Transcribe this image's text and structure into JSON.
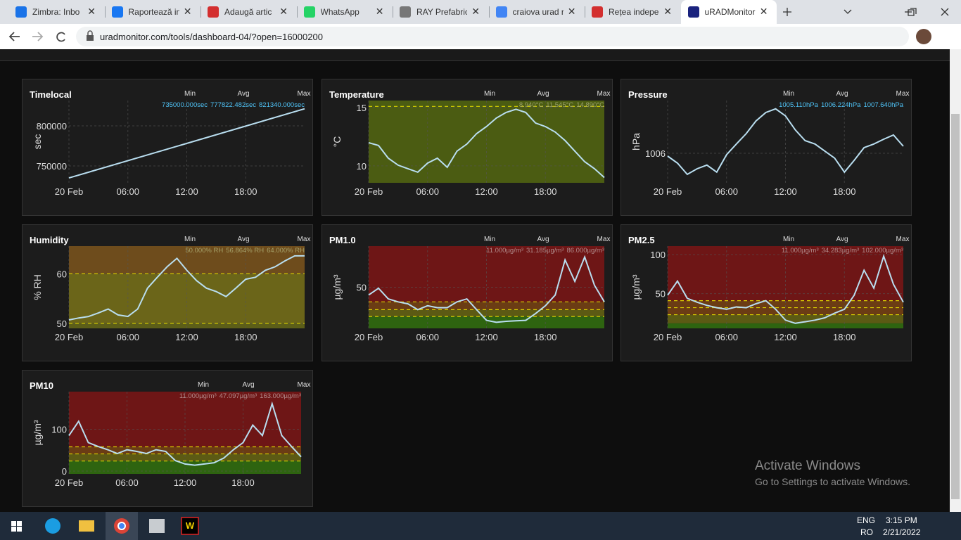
{
  "browser": {
    "tabs": [
      "Zimbra: Inbo",
      "Raportează in",
      "Adaugă artic",
      "WhatsApp",
      "RAY Prefabric",
      "craiova urad r",
      "Rețea indeper",
      "uRADMonitor"
    ],
    "active_tab": 7,
    "url": "uradmonitor.com/tools/dashboard-04/?open=16000200"
  },
  "watermark": {
    "title": "Activate Windows",
    "subtitle": "Go to Settings to activate Windows."
  },
  "taskbar": {
    "lang": "ENG",
    "layout": "RO",
    "time": "3:15 PM",
    "date": "2/21/2022"
  },
  "chart_data": [
    {
      "type": "line",
      "title": "Timelocal",
      "ylabel": "sec",
      "stat_labels": [
        "Min",
        "Avg",
        "Max"
      ],
      "stats": [
        "735000.000sec",
        "777822.482sec",
        "821340.000sec"
      ],
      "stats_color": "#4fc3f7",
      "x": [
        0,
        24
      ],
      "values": [
        735000,
        821340
      ],
      "color": "#b9def0",
      "xlim": [
        0,
        24
      ],
      "xticks": [
        {
          "value": 0,
          "label": "20 Feb"
        },
        {
          "value": 6,
          "label": "06:00"
        },
        {
          "value": 12,
          "label": "12:00"
        },
        {
          "value": 18,
          "label": "18:00"
        }
      ],
      "ylim": [
        728947,
        831579
      ],
      "yticks": [
        750000,
        800000
      ],
      "background": "#1c1c1c",
      "bands": [],
      "thresholds": []
    },
    {
      "type": "line",
      "title": "Temperature",
      "ylabel": "°C",
      "stat_labels": [
        "Min",
        "Avg",
        "Max"
      ],
      "stats": [
        "8.940°C",
        "11.545°C",
        "14.890°C"
      ],
      "stats_color": "#9aa06a",
      "x": [
        0,
        1,
        2,
        3,
        4,
        5,
        6,
        7,
        8,
        9,
        10,
        11,
        12,
        13,
        14,
        15,
        16,
        17,
        18,
        19,
        20,
        21,
        22,
        23,
        24
      ],
      "values": [
        11.99,
        11.75,
        10.66,
        10.06,
        9.76,
        9.46,
        10.24,
        10.66,
        9.88,
        11.27,
        11.87,
        12.77,
        13.37,
        14.1,
        14.58,
        14.85,
        14.58,
        13.67,
        13.37,
        12.9,
        12.17,
        11.27,
        10.36,
        9.76,
        9.0
      ],
      "color": "#b9def0",
      "xlim": [
        0,
        24
      ],
      "xticks": [
        {
          "value": 0,
          "label": "20 Feb"
        },
        {
          "value": 6,
          "label": "06:00"
        },
        {
          "value": 12,
          "label": "12:00"
        },
        {
          "value": 18,
          "label": "18:00"
        }
      ],
      "ylim": [
        8.55,
        15.6
      ],
      "yticks": [
        10,
        15
      ],
      "background": "#1c1c1c",
      "bands": [
        {
          "from": 8.55,
          "to": 15.6,
          "color": "#4b5c12"
        }
      ],
      "thresholds": [
        15.1
      ]
    },
    {
      "type": "line",
      "title": "Pressure",
      "ylabel": "hPa",
      "stat_labels": [
        "Min",
        "Avg",
        "Max"
      ],
      "stats": [
        "1005.110hPa",
        "1006.224hPa",
        "1007.640hPa"
      ],
      "stats_color": "#4fc3f7",
      "x": [
        0,
        1,
        2,
        3,
        4,
        5,
        6,
        7,
        8,
        9,
        10,
        11,
        12,
        13,
        14,
        15,
        16,
        17,
        18,
        19,
        20,
        21,
        22,
        23,
        24
      ],
      "values": [
        1005.9,
        1005.65,
        1005.25,
        1005.45,
        1005.58,
        1005.33,
        1005.95,
        1006.33,
        1006.7,
        1007.15,
        1007.45,
        1007.58,
        1007.33,
        1006.83,
        1006.45,
        1006.33,
        1006.08,
        1005.83,
        1005.33,
        1005.75,
        1006.2,
        1006.33,
        1006.5,
        1006.65,
        1006.25
      ],
      "color": "#b9def0",
      "xlim": [
        0,
        24
      ],
      "xticks": [
        {
          "value": 0,
          "label": "20 Feb"
        },
        {
          "value": 6,
          "label": "06:00"
        },
        {
          "value": 12,
          "label": "12:00"
        },
        {
          "value": 18,
          "label": "18:00"
        }
      ],
      "ylim": [
        1004.95,
        1007.875
      ],
      "yticks": [
        1006
      ],
      "background": "#1c1c1c",
      "bands": [],
      "thresholds": []
    },
    {
      "type": "line",
      "title": "Humidity",
      "ylabel": "% RH",
      "stat_labels": [
        "Min",
        "Avg",
        "Max"
      ],
      "stats": [
        "50.000% RH",
        "56.864% RH",
        "64.000% RH"
      ],
      "stats_color": "#a6a26a",
      "x": [
        0,
        1,
        2,
        3,
        4,
        5,
        6,
        7,
        8,
        9,
        10,
        11,
        12,
        13,
        14,
        15,
        16,
        17,
        18,
        19,
        20,
        21,
        22,
        23,
        24
      ],
      "values": [
        50.7,
        51.1,
        51.4,
        52.1,
        52.9,
        51.7,
        51.4,
        52.9,
        57.1,
        59.3,
        61.4,
        63.1,
        60.7,
        58.6,
        57.1,
        56.4,
        55.4,
        57.1,
        58.9,
        59.3,
        60.7,
        61.4,
        62.6,
        63.6,
        63.6
      ],
      "color": "#b9def0",
      "xlim": [
        0,
        24
      ],
      "xticks": [
        {
          "value": 0,
          "label": "20 Feb"
        },
        {
          "value": 6,
          "label": "06:00"
        },
        {
          "value": 12,
          "label": "12:00"
        },
        {
          "value": 18,
          "label": "18:00"
        }
      ],
      "ylim": [
        49,
        65.57
      ],
      "yticks": [
        50,
        60
      ],
      "background": "#1c1c1c",
      "bands": [
        {
          "from": 49,
          "to": 50,
          "color": "#5c5e18"
        },
        {
          "from": 50,
          "to": 60,
          "color": "#6b6519"
        },
        {
          "from": 60,
          "to": 65.57,
          "color": "#6e4c1c"
        }
      ],
      "thresholds": [
        50,
        60
      ]
    },
    {
      "type": "line",
      "title": "PM1.0",
      "ylabel": "µg/m³",
      "stat_labels": [
        "Min",
        "Avg",
        "Max"
      ],
      "stats": [
        "11.000µg/m³",
        "31.185µg/m³",
        "86.000µg/m³"
      ],
      "stats_color": "#b08a8a",
      "x": [
        0,
        1,
        2,
        3,
        4,
        5,
        6,
        7,
        8,
        9,
        10,
        11,
        12,
        13,
        14,
        15,
        16,
        17,
        18,
        19,
        20,
        21,
        22,
        23,
        24
      ],
      "values": [
        42,
        49,
        38,
        35,
        33,
        27,
        31,
        29,
        29,
        35,
        38,
        27,
        16,
        14,
        15,
        15.5,
        16,
        23,
        31,
        42,
        78,
        56,
        81,
        52,
        35
      ],
      "color": "#b9def0",
      "xlim": [
        0,
        24
      ],
      "xticks": [
        {
          "value": 0,
          "label": "20 Feb"
        },
        {
          "value": 6,
          "label": "06:00"
        },
        {
          "value": 12,
          "label": "12:00"
        },
        {
          "value": 18,
          "label": "18:00"
        }
      ],
      "ylim": [
        7.8,
        92.2
      ],
      "yticks": [
        50
      ],
      "background": "#1c1c1c",
      "bands": [
        {
          "from": 7.8,
          "to": 20,
          "color": "#2e6410"
        },
        {
          "from": 20,
          "to": 27,
          "color": "#5c5a14"
        },
        {
          "from": 27,
          "to": 35,
          "color": "#6b3c14"
        },
        {
          "from": 35,
          "to": 92.2,
          "color": "#6e1616"
        }
      ],
      "thresholds": [
        20,
        27,
        35
      ]
    },
    {
      "type": "line",
      "title": "PM2.5",
      "ylabel": "µg/m³",
      "stat_labels": [
        "Min",
        "Avg",
        "Max"
      ],
      "stats": [
        "11.000µg/m³",
        "34.283µg/m³",
        "102.000µg/m³"
      ],
      "stats_color": "#b08a8a",
      "x": [
        0,
        1,
        2,
        3,
        4,
        5,
        6,
        7,
        8,
        9,
        10,
        11,
        12,
        13,
        14,
        15,
        16,
        17,
        18,
        19,
        20,
        21,
        22,
        23,
        24
      ],
      "values": [
        48,
        66,
        44,
        39,
        35,
        32,
        30,
        33,
        32,
        37,
        41,
        30,
        16,
        12,
        14,
        16,
        19,
        25,
        30,
        48,
        80,
        57,
        98,
        62,
        39
      ],
      "color": "#b9def0",
      "xlim": [
        0,
        24
      ],
      "xticks": [
        {
          "value": 0,
          "label": "20 Feb"
        },
        {
          "value": 6,
          "label": "06:00"
        },
        {
          "value": 12,
          "label": "12:00"
        },
        {
          "value": 18,
          "label": "18:00"
        }
      ],
      "ylim": [
        5.5,
        110.9
      ],
      "yticks": [
        50,
        100
      ],
      "background": "#1c1c1c",
      "bands": [
        {
          "from": 5.5,
          "to": 12,
          "color": "#2e6410"
        },
        {
          "from": 12,
          "to": 23,
          "color": "#5c5a14"
        },
        {
          "from": 23,
          "to": 41,
          "color": "#6b3c14"
        },
        {
          "from": 41,
          "to": 110.9,
          "color": "#6e1616"
        }
      ],
      "thresholds": [
        23,
        32,
        41
      ]
    },
    {
      "type": "line",
      "title": "PM10",
      "ylabel": "µg/m³",
      "stat_labels": [
        "Min",
        "Avg",
        "Max"
      ],
      "stats": [
        "11.000µg/m³",
        "47.097µg/m³",
        "163.000µg/m³"
      ],
      "stats_color": "#b08a8a",
      "x": [
        0,
        1,
        2,
        3,
        4,
        5,
        6,
        7,
        8,
        9,
        10,
        11,
        12,
        13,
        14,
        15,
        16,
        17,
        18,
        19,
        20,
        21,
        22,
        23,
        24
      ],
      "values": [
        85,
        119,
        68,
        59,
        51,
        42,
        51,
        47,
        42,
        51,
        47,
        25,
        17,
        14,
        17,
        20,
        31,
        51,
        68,
        110,
        85,
        161,
        85,
        59,
        34
      ],
      "color": "#b9def0",
      "xlim": [
        0,
        24
      ],
      "xticks": [
        {
          "value": 0,
          "label": "20 Feb"
        },
        {
          "value": 6,
          "label": "06:00"
        },
        {
          "value": 12,
          "label": "12:00"
        },
        {
          "value": 18,
          "label": "18:00"
        }
      ],
      "ylim": [
        -6.8,
        190
      ],
      "yticks": [
        0,
        100
      ],
      "background": "#1c1c1c",
      "bands": [
        {
          "from": -6.8,
          "to": 24,
          "color": "#2e6410"
        },
        {
          "from": 24,
          "to": 41,
          "color": "#5c5a14"
        },
        {
          "from": 41,
          "to": 58,
          "color": "#6b3c14"
        },
        {
          "from": 58,
          "to": 190,
          "color": "#6e1616"
        }
      ],
      "thresholds": [
        24,
        41,
        58
      ]
    }
  ]
}
